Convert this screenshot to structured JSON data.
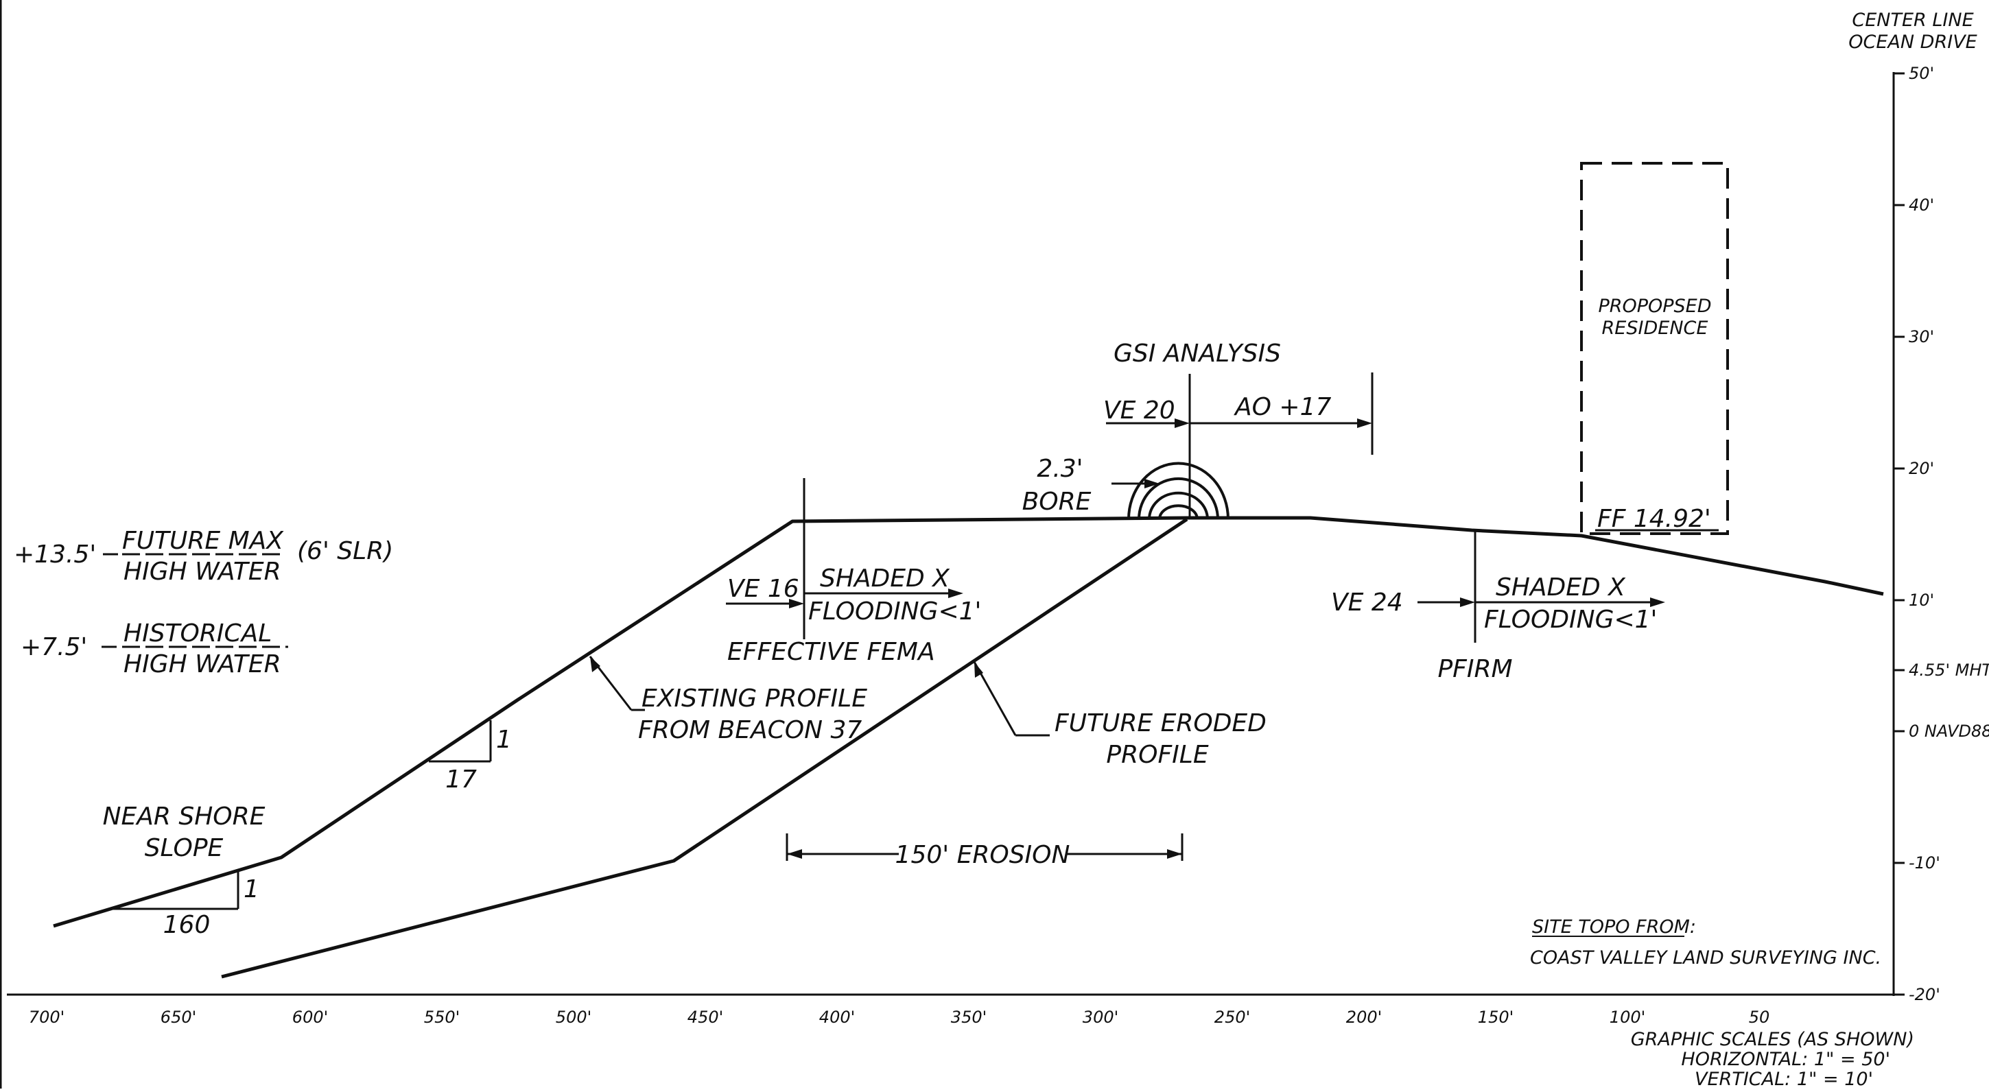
{
  "header": {
    "center_line_1": "CENTER LINE",
    "center_line_2": "OCEAN DRIVE"
  },
  "axes": {
    "x_ticks": [
      "700'",
      "650'",
      "600'",
      "550'",
      "500'",
      "450'",
      "400'",
      "350'",
      "300'",
      "250'",
      "200'",
      "150'",
      "100'",
      "50"
    ],
    "y_ticks": [
      "50'",
      "40'",
      "30'",
      "20'",
      "10'",
      "4.55' MHT",
      "0 NAVD88",
      "-10'",
      "-20'"
    ]
  },
  "water_levels": {
    "future_value": "+13.5'",
    "future_line1": "FUTURE MAX",
    "future_line2": "HIGH WATER",
    "future_note": "(6' SLR)",
    "historical_value": "+7.5'",
    "historical_line1": "HISTORICAL",
    "historical_line2": "HIGH WATER"
  },
  "labels": {
    "gsi_analysis": "GSI ANALYSIS",
    "ve20": "VE 20",
    "ao17": "AO +17",
    "bore_1": "2.3'",
    "bore_2": "BORE",
    "ve16": "VE 16",
    "shaded_x": "SHADED X",
    "flooding": "FLOODING<1'",
    "effective_fema": "EFFECTIVE FEMA",
    "ve24": "VE 24",
    "pfirm": "PFIRM",
    "existing_1": "EXISTING PROFILE",
    "existing_2": "FROM BEACON 37",
    "future_eroded_1": "FUTURE ERODED",
    "future_eroded_2": "PROFILE",
    "erosion": "150' EROSION",
    "near_shore_1": "NEAR SHORE",
    "near_shore_2": "SLOPE",
    "slope1_run": "17",
    "slope1_rise": "1",
    "slope2_run": "160",
    "slope2_rise": "1",
    "residence_1": "PROPOPSED",
    "residence_2": "RESIDENCE",
    "ff": "FF 14.92'",
    "site_topo": "SITE TOPO FROM:",
    "surveyor": "COAST VALLEY LAND SURVEYING INC."
  },
  "scale_note": {
    "line1": "GRAPHIC SCALES (AS SHOWN)",
    "line2": "HORIZONTAL: 1\" = 50'",
    "line3": "VERTICAL: 1\" = 10'"
  }
}
